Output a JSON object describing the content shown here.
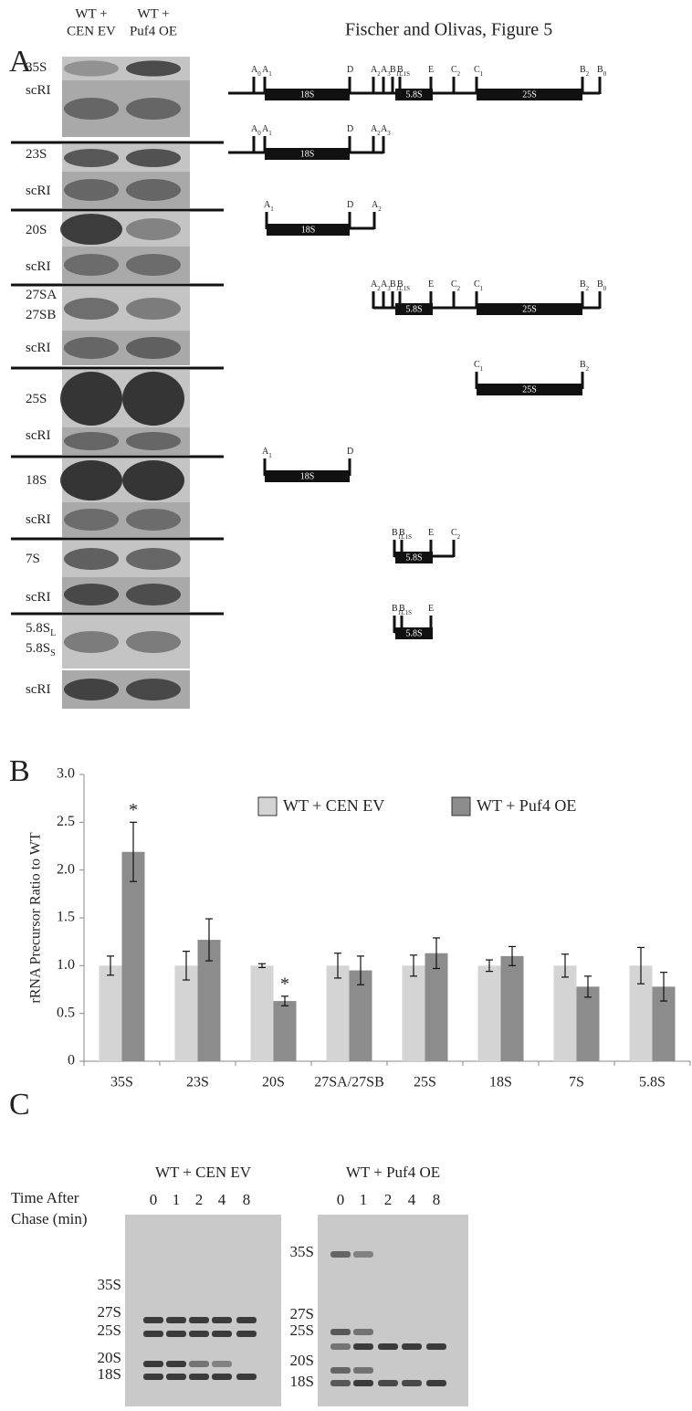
{
  "header": {
    "title": "Fischer and Olivas, Figure 5"
  },
  "panel_a": {
    "letter": "A",
    "columns": [
      [
        "WT +",
        "CEN EV"
      ],
      [
        "WT +",
        "Puf4 OE"
      ]
    ],
    "rows": [
      {
        "lines": [
          {
            "text": "35S"
          }
        ]
      },
      {
        "lines": [
          {
            "text": "scRI"
          }
        ]
      },
      {
        "lines": [
          {
            "text": "23S"
          }
        ]
      },
      {
        "lines": [
          {
            "text": "scRI"
          }
        ]
      },
      {
        "lines": [
          {
            "text": "20S"
          }
        ]
      },
      {
        "lines": [
          {
            "text": "scRI"
          }
        ]
      },
      {
        "lines": [
          {
            "text": "27SA"
          },
          {
            "text": "27SB"
          }
        ]
      },
      {
        "lines": [
          {
            "text": "scRI"
          }
        ]
      },
      {
        "lines": [
          {
            "text": "25S"
          }
        ]
      },
      {
        "lines": [
          {
            "text": "scRI"
          }
        ]
      },
      {
        "lines": [
          {
            "text": "18S"
          }
        ]
      },
      {
        "lines": [
          {
            "text": "scRI"
          }
        ]
      },
      {
        "lines": [
          {
            "text": "7S"
          }
        ]
      },
      {
        "lines": [
          {
            "text": "scRI"
          }
        ]
      },
      {
        "lines": [
          {
            "text": "5.8S",
            "sub": "L"
          },
          {
            "text": "5.8S",
            "sub": "S"
          }
        ]
      },
      {
        "lines": [
          {
            "text": "scRI"
          }
        ]
      }
    ],
    "diagrams": [
      {
        "sites": [
          {
            "letter": "A",
            "sub": "0"
          },
          {
            "letter": "A",
            "sub": "1"
          },
          {
            "letter": "D"
          },
          {
            "letter": "A",
            "sub": "2"
          },
          {
            "letter": "A",
            "sub": "3"
          },
          {
            "letter": "B",
            "sub": "1L"
          },
          {
            "letter": "B",
            "sub": "1S"
          },
          {
            "letter": "E"
          },
          {
            "letter": "C",
            "sub": "2"
          },
          {
            "letter": "C",
            "sub": "1"
          },
          {
            "letter": "B",
            "sub": "2"
          },
          {
            "letter": "B",
            "sub": "0"
          }
        ],
        "boxes": [
          "18S",
          "5.8S",
          "25S"
        ]
      },
      {
        "sites": [
          {
            "letter": "A",
            "sub": "0"
          },
          {
            "letter": "A",
            "sub": "1"
          },
          {
            "letter": "D"
          },
          {
            "letter": "A",
            "sub": "2"
          },
          {
            "letter": "A",
            "sub": "3"
          }
        ],
        "boxes": [
          "18S"
        ]
      },
      {
        "sites": [
          {
            "letter": "A",
            "sub": "1"
          },
          {
            "letter": "D"
          },
          {
            "letter": "A",
            "sub": "2"
          }
        ],
        "boxes": [
          "18S"
        ]
      },
      {
        "sites": [
          {
            "letter": "A",
            "sub": "2"
          },
          {
            "letter": "A",
            "sub": "3"
          },
          {
            "letter": "B",
            "sub": "1L"
          },
          {
            "letter": "B",
            "sub": "1S"
          },
          {
            "letter": "E"
          },
          {
            "letter": "C",
            "sub": "2"
          },
          {
            "letter": "C",
            "sub": "1"
          },
          {
            "letter": "B",
            "sub": "2"
          },
          {
            "letter": "B",
            "sub": "0"
          }
        ],
        "boxes": [
          "5.8S",
          "25S"
        ]
      },
      {
        "sites": [
          {
            "letter": "C",
            "sub": "1"
          },
          {
            "letter": "B",
            "sub": "2"
          }
        ],
        "boxes": [
          "25S"
        ]
      },
      {
        "sites": [
          {
            "letter": "A",
            "sub": "1"
          },
          {
            "letter": "D"
          }
        ],
        "boxes": [
          "18S"
        ]
      },
      {
        "sites": [
          {
            "letter": "B",
            "sub": "1L"
          },
          {
            "letter": "B",
            "sub": "1S"
          },
          {
            "letter": "E"
          },
          {
            "letter": "C",
            "sub": "2"
          }
        ],
        "boxes": [
          "5.8S"
        ]
      },
      {
        "sites": [
          {
            "letter": "B",
            "sub": "1L"
          },
          {
            "letter": "B",
            "sub": "1S"
          },
          {
            "letter": "E"
          }
        ],
        "boxes": [
          "5.8S"
        ]
      }
    ]
  },
  "chart_data": {
    "type": "bar",
    "panel_label": "B",
    "y_label": "rRNA Precursor Ratio to WT",
    "categories": [
      "35S",
      "23S",
      "20S",
      "27SA/27SB",
      "25S",
      "18S",
      "7S",
      "5.8S"
    ],
    "series": [
      {
        "name": "WT + CEN EV",
        "color": "#d4d4d4",
        "values": [
          1,
          1,
          1,
          1,
          1,
          1,
          1,
          1
        ],
        "errors": [
          0.1,
          0.15,
          0.02,
          0.13,
          0.11,
          0.06,
          0.12,
          0.19
        ]
      },
      {
        "name": "WT + Puf4 OE",
        "color": "#8c8c8c",
        "values": [
          2.19,
          1.27,
          0.63,
          0.95,
          1.13,
          1.1,
          0.78,
          0.78
        ],
        "errors": [
          0.31,
          0.22,
          0.05,
          0.15,
          0.16,
          0.1,
          0.11,
          0.15
        ]
      }
    ],
    "annotations": [
      {
        "text": "*",
        "category": "35S",
        "series": "WT + Puf4 OE"
      },
      {
        "text": "*",
        "category": "20S",
        "series": "WT + Puf4 OE"
      }
    ],
    "ylim": [
      0,
      3
    ],
    "yticks": [
      0,
      0.5,
      {
        "value": 1,
        "label": "1.0"
      },
      1.5,
      {
        "value": 2,
        "label": "2.0"
      },
      2.5,
      {
        "value": 3,
        "label": "3.0"
      }
    ],
    "grid": false,
    "legend": "top"
  },
  "panel_c": {
    "letter": "C",
    "time_label": [
      "Time After",
      "Chase (min)"
    ],
    "gels": [
      {
        "title": "WT + CEN EV",
        "lanes": [
          "0",
          "1",
          "2",
          "4",
          "8"
        ],
        "bands": [
          "35S",
          "27S",
          "25S",
          "20S",
          "18S"
        ]
      },
      {
        "title": "WT + Puf4 OE",
        "lanes": [
          "0",
          "1",
          "2",
          "4",
          "8"
        ],
        "bands": [
          "35S",
          "27S",
          "25S",
          "20S",
          "18S"
        ]
      }
    ]
  }
}
